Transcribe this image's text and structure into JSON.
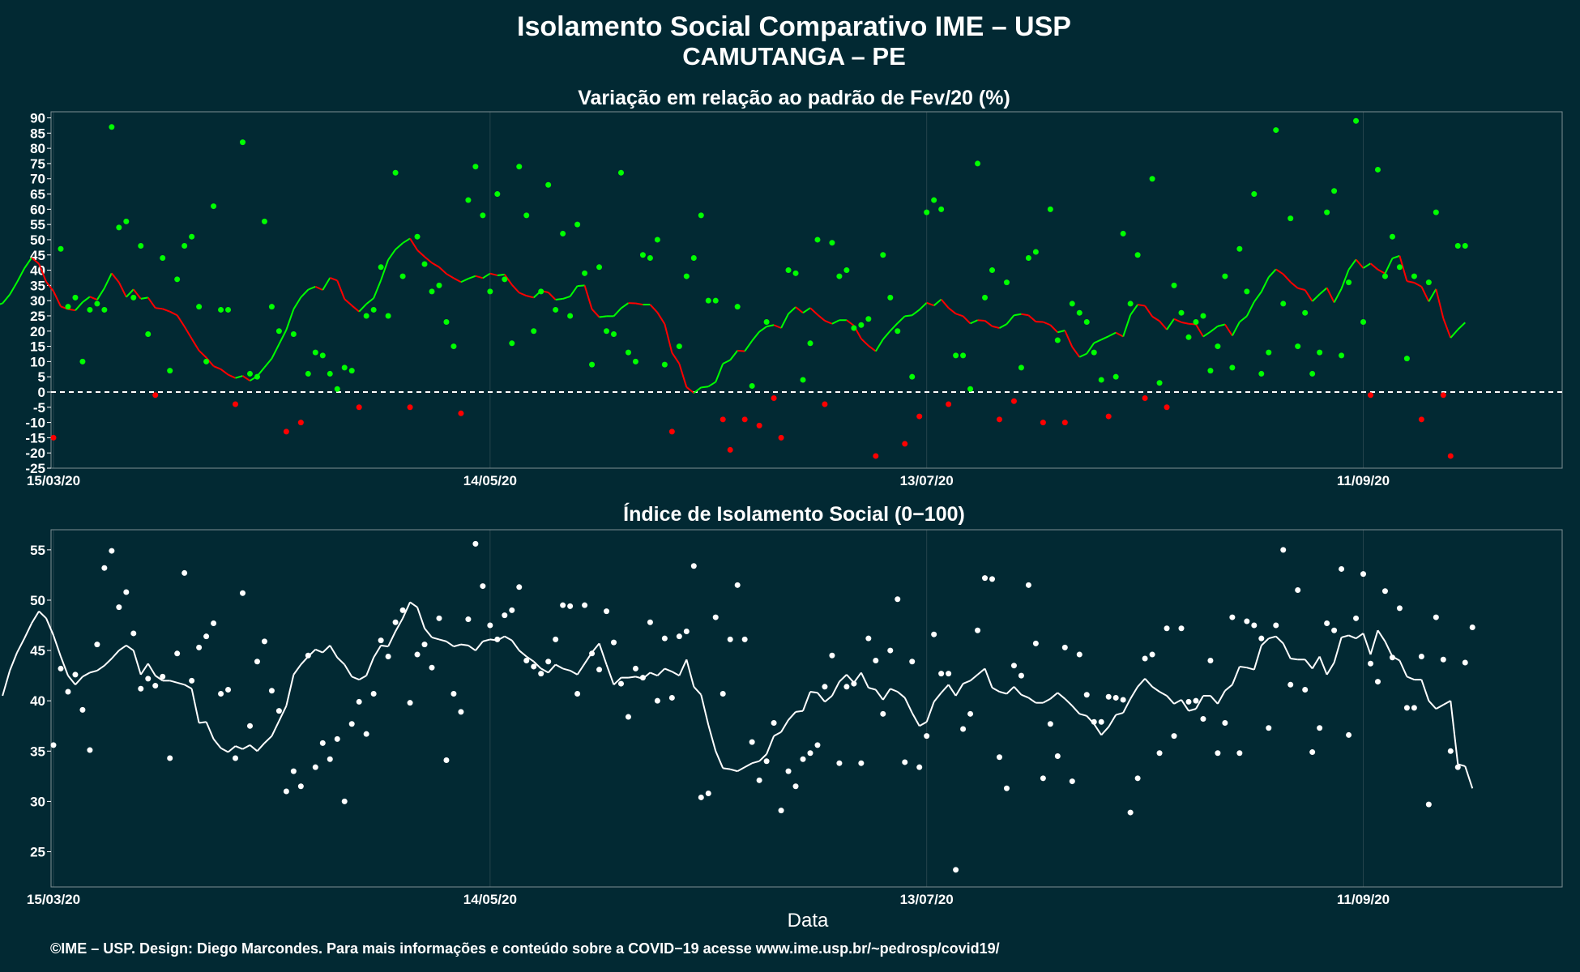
{
  "title": "Isolamento Social Comparativo IME – USP",
  "subtitle": "CAMUTANGA – PE",
  "footer": "©IME – USP. Design: Diego Marcondes. Para mais informações e conteúdo sobre a COVID−19 acesse www.ime.usp.br/~pedrosp/covid19/",
  "colors": {
    "background": "#022933",
    "grid": "#25434c",
    "positive": "#00ff00",
    "negative": "#ff0000",
    "index": "#ffffff",
    "zero_line": "#ffffff"
  },
  "chart_data": [
    {
      "type": "scatter",
      "title": "Variação em relação ao padrão de Fev/20 (%)",
      "xlabel": "",
      "x_ticks": [
        "15/03/20",
        "14/05/20",
        "13/07/20",
        "11/09/20"
      ],
      "x_start": "15/03/20",
      "x_end": "08/10/20",
      "y_ticks": [
        -25,
        -20,
        -15,
        -10,
        -5,
        0,
        5,
        10,
        15,
        20,
        25,
        30,
        35,
        40,
        45,
        50,
        55,
        60,
        65,
        70,
        75,
        80,
        85,
        90
      ],
      "ylim": [
        -25,
        92
      ],
      "reference_line": 0,
      "daily_values": [
        -15,
        47,
        28,
        31,
        10,
        27,
        29,
        27,
        87,
        54,
        56,
        31,
        48,
        19,
        -1,
        44,
        7,
        37,
        48,
        51,
        28,
        10,
        61,
        27,
        27,
        -4,
        82,
        6,
        5,
        56,
        28,
        20,
        -13,
        19,
        -10,
        6,
        13,
        12,
        6,
        1,
        8,
        7,
        -5,
        25,
        27,
        41,
        25,
        72,
        38,
        -5,
        51,
        42,
        33,
        35,
        23,
        15,
        -7,
        63,
        74,
        58,
        33,
        65,
        37,
        16,
        74,
        58,
        20,
        33,
        68,
        27,
        52,
        25,
        55,
        39,
        9,
        41,
        20,
        19,
        72,
        13,
        10,
        45,
        44,
        50,
        9,
        -13,
        15,
        38,
        44,
        58,
        30,
        30,
        -9,
        -19,
        28,
        -9,
        2,
        -11,
        23,
        -2,
        -15,
        40,
        39,
        4,
        16,
        50,
        -4,
        49,
        38,
        40,
        21,
        22,
        24,
        -21,
        45,
        31,
        20,
        -17,
        5,
        -8,
        59,
        63,
        60,
        -4,
        12,
        12,
        1,
        75,
        31,
        40,
        -9,
        36,
        -3,
        8,
        44,
        46,
        -10,
        60,
        17,
        -10,
        29,
        26,
        23,
        13,
        4,
        -8,
        5,
        52,
        29,
        45,
        -2,
        70,
        3,
        -5,
        35,
        26,
        18,
        23,
        25,
        7,
        15,
        38,
        8,
        47,
        33,
        65,
        6,
        13,
        86,
        29,
        57,
        15,
        26,
        6,
        13,
        59,
        66,
        12,
        36,
        89,
        23,
        -1,
        73,
        38,
        51,
        41,
        11,
        38,
        -9,
        36,
        59,
        -1,
        -21,
        48,
        48
      ],
      "moving_average": [
        30.7,
        28.1,
        26.6,
        25.3,
        28.4,
        29.1,
        32.0,
        36.1,
        40.6,
        44.1,
        42.1,
        36.2,
        33.1,
        28.1,
        27.2,
        26.8,
        29.5,
        31.3,
        30.3,
        34.1,
        39.0,
        36.0,
        31.2,
        33.7,
        30.6,
        31.0,
        27.6,
        27.3,
        26.4,
        25.2,
        21.5,
        17.5,
        13.6,
        11.3,
        8.5,
        7.5,
        5.7,
        4.6,
        5.3,
        3.7,
        5.2,
        8.1,
        11.0,
        15.7,
        20.4,
        27.2,
        31.1,
        33.6,
        34.6,
        33.5,
        37.5,
        36.6,
        30.5,
        28.4,
        26.4,
        28.9,
        30.8,
        36.7,
        43.4,
        46.8,
        48.9,
        50.4,
        46.6,
        44.4,
        42.4,
        41.0,
        38.8,
        37.4,
        36.1,
        37.2,
        38.1,
        37.4,
        38.9,
        38.3,
        38.6,
        35.2,
        32.6,
        31.6,
        31.0,
        33.2,
        32.7,
        30.3,
        30.6,
        31.4,
        34.8,
        35.0,
        27.2,
        24.6,
        24.9,
        24.9,
        27.5,
        29.2,
        29.1,
        28.7,
        28.7,
        26.1,
        22.3,
        12.9,
        9.3,
        1.6,
        -0.3,
        1.5,
        1.8,
        3.3,
        9.3,
        10.5,
        13.6,
        13.4,
        16.8,
        19.8,
        21.5,
        22.0,
        21.0,
        25.7,
        27.9,
        26.0,
        27.6,
        25.4,
        23.4,
        22.4,
        23.6,
        23.6,
        21.8,
        17.5,
        15.2,
        13.4,
        17.3,
        20.1,
        22.6,
        24.9,
        25.2,
        27.0,
        29.3,
        28.4,
        30.4,
        27.6,
        25.7,
        24.9,
        22.5,
        23.6,
        23.4,
        21.6,
        21.0,
        22.3,
        25.2,
        25.6,
        25.2,
        23.1,
        23.0,
        22.0,
        19.6,
        20.2,
        14.8,
        11.5,
        12.6,
        16.1,
        17.2,
        18.3,
        19.5,
        18.2,
        25.3,
        28.7,
        28.3,
        24.8,
        23.3,
        20.5,
        24.0,
        22.9,
        22.4,
        22.2,
        18.2,
        19.8,
        21.6,
        22.2,
        18.5,
        23.0,
        24.9,
        29.6,
        32.9,
        37.7,
        40.3,
        38.7,
        36.1,
        34.1,
        33.5,
        29.8,
        32.1,
        34.2,
        29.4,
        33.9,
        40.2,
        43.5,
        40.7,
        42.2,
        40.2,
        38.9,
        43.9,
        44.7,
        36.4,
        35.9,
        34.6,
        29.7,
        33.8,
        24.2,
        17.8,
        20.5,
        22.8
      ]
    },
    {
      "type": "scatter",
      "title": "Índice de Isolamento Social (0−100)",
      "xlabel": "Data",
      "x_ticks": [
        "15/03/20",
        "14/05/20",
        "13/07/20",
        "11/09/20"
      ],
      "x_start": "15/03/20",
      "x_end": "08/10/20",
      "y_ticks": [
        25,
        30,
        35,
        40,
        45,
        50,
        55
      ],
      "ylim": [
        21.5,
        57
      ],
      "daily_values": [
        35.6,
        43.2,
        40.9,
        42.6,
        39.1,
        35.1,
        45.6,
        53.2,
        54.9,
        49.3,
        50.8,
        46.7,
        41.2,
        42.2,
        41.5,
        42.4,
        34.3,
        44.7,
        52.7,
        42.0,
        45.3,
        46.4,
        47.7,
        40.7,
        41.1,
        34.3,
        50.7,
        37.5,
        43.9,
        45.9,
        41.0,
        39.0,
        31.0,
        33.0,
        31.5,
        44.5,
        33.4,
        35.8,
        34.2,
        36.2,
        30.0,
        37.7,
        39.9,
        36.7,
        40.7,
        46.0,
        44.4,
        47.8,
        49.0,
        39.8,
        44.6,
        45.6,
        43.3,
        48.2,
        34.1,
        40.7,
        38.9,
        48.1,
        55.6,
        51.4,
        47.5,
        46.1,
        48.5,
        49.0,
        51.3,
        44.0,
        43.4,
        42.7,
        43.9,
        46.1,
        49.5,
        49.4,
        40.7,
        49.5,
        44.7,
        43.1,
        48.9,
        45.8,
        41.7,
        38.4,
        43.2,
        42.3,
        47.8,
        40.0,
        46.2,
        40.3,
        46.4,
        46.9,
        53.4,
        30.4,
        30.8,
        48.3,
        40.7,
        46.1,
        51.5,
        46.1,
        35.9,
        32.1,
        34.0,
        37.8,
        29.1,
        33.0,
        31.5,
        34.2,
        34.8,
        35.6,
        41.4,
        44.5,
        33.8,
        41.4,
        41.7,
        33.8,
        46.2,
        44.0,
        38.7,
        45.0,
        50.1,
        33.9,
        43.9,
        33.4,
        36.5,
        46.6,
        42.7,
        42.7,
        23.2,
        37.2,
        38.7,
        47.0,
        52.2,
        52.1,
        34.4,
        31.3,
        43.5,
        42.5,
        51.5,
        45.7,
        32.3,
        37.7,
        34.5,
        45.3,
        32.0,
        44.6,
        40.6,
        37.9,
        37.9,
        40.4,
        40.3,
        40.1,
        28.9,
        32.3,
        44.2,
        44.6,
        34.8,
        47.2,
        36.5,
        47.2,
        39.9,
        40.0,
        38.2,
        44.0,
        34.8,
        37.8,
        48.3,
        34.8,
        47.9,
        47.5,
        46.2,
        37.3,
        47.5,
        55.0,
        41.6,
        51.0,
        41.1,
        34.9,
        37.3,
        47.7,
        47.0,
        53.1,
        36.6,
        48.2,
        52.6,
        43.7,
        41.9,
        50.9,
        44.3,
        49.2,
        39.3,
        39.3,
        44.4,
        29.7,
        48.3,
        44.1,
        35.0,
        33.4,
        43.8,
        47.3
      ],
      "moving_average": [
        40.5,
        43.0,
        44.8,
        46.2,
        47.7,
        48.9,
        48.2,
        46.5,
        44.4,
        42.5,
        41.6,
        42.4,
        42.8,
        43.0,
        43.5,
        44.2,
        45.0,
        45.5,
        45.0,
        42.6,
        43.7,
        42.5,
        42.0,
        42.0,
        41.8,
        41.6,
        41.2,
        37.8,
        37.9,
        36.2,
        35.3,
        34.9,
        35.5,
        35.2,
        35.6,
        35.0,
        35.8,
        36.5,
        38.0,
        39.5,
        42.6,
        43.6,
        44.4,
        45.1,
        44.8,
        45.5,
        44.3,
        43.6,
        42.4,
        42.1,
        42.5,
        44.3,
        45.5,
        45.4,
        46.9,
        48.2,
        49.8,
        49.3,
        47.2,
        46.3,
        46.1,
        45.9,
        45.4,
        45.6,
        45.5,
        45.0,
        45.9,
        46.1,
        46.0,
        46.4,
        46.0,
        45.0,
        44.4,
        43.9,
        43.2,
        42.8,
        43.6,
        43.2,
        43.0,
        42.6,
        43.7,
        44.8,
        45.7,
        43.6,
        41.6,
        42.3,
        42.3,
        42.4,
        42.2,
        42.8,
        42.5,
        43.2,
        42.9,
        42.5,
        44.1,
        41.4,
        40.6,
        37.6,
        35.0,
        33.3,
        33.2,
        33.0,
        33.4,
        33.8,
        34.0,
        34.7,
        36.5,
        36.9,
        38.1,
        38.9,
        39.0,
        40.9,
        40.8,
        39.9,
        40.5,
        41.9,
        42.6,
        41.8,
        42.8,
        41.3,
        41.1,
        40.1,
        41.2,
        40.9,
        40.3,
        38.8,
        37.5,
        37.9,
        39.9,
        40.8,
        41.6,
        40.5,
        41.7,
        42.0,
        42.6,
        43.2,
        41.3,
        40.9,
        40.7,
        41.4,
        40.6,
        40.3,
        39.8,
        39.8,
        40.2,
        40.8,
        40.2,
        39.5,
        38.7,
        38.5,
        37.7,
        36.6,
        37.4,
        38.6,
        38.8,
        40.2,
        41.4,
        42.2,
        41.4,
        40.9,
        40.5,
        39.7,
        40.1,
        39.0,
        39.2,
        40.5,
        40.5,
        39.7,
        41.0,
        41.6,
        43.4,
        43.3,
        43.1,
        45.5,
        46.2,
        46.4,
        45.7,
        44.2,
        44.1,
        44.1,
        43.2,
        44.4,
        42.6,
        43.8,
        46.3,
        46.5,
        46.2,
        46.7,
        44.6,
        47.0,
        45.9,
        44.4,
        44.0,
        42.4,
        42.1,
        42.1,
        40.0,
        39.2,
        39.6,
        40.0,
        33.7,
        33.5,
        31.3
      ]
    }
  ]
}
